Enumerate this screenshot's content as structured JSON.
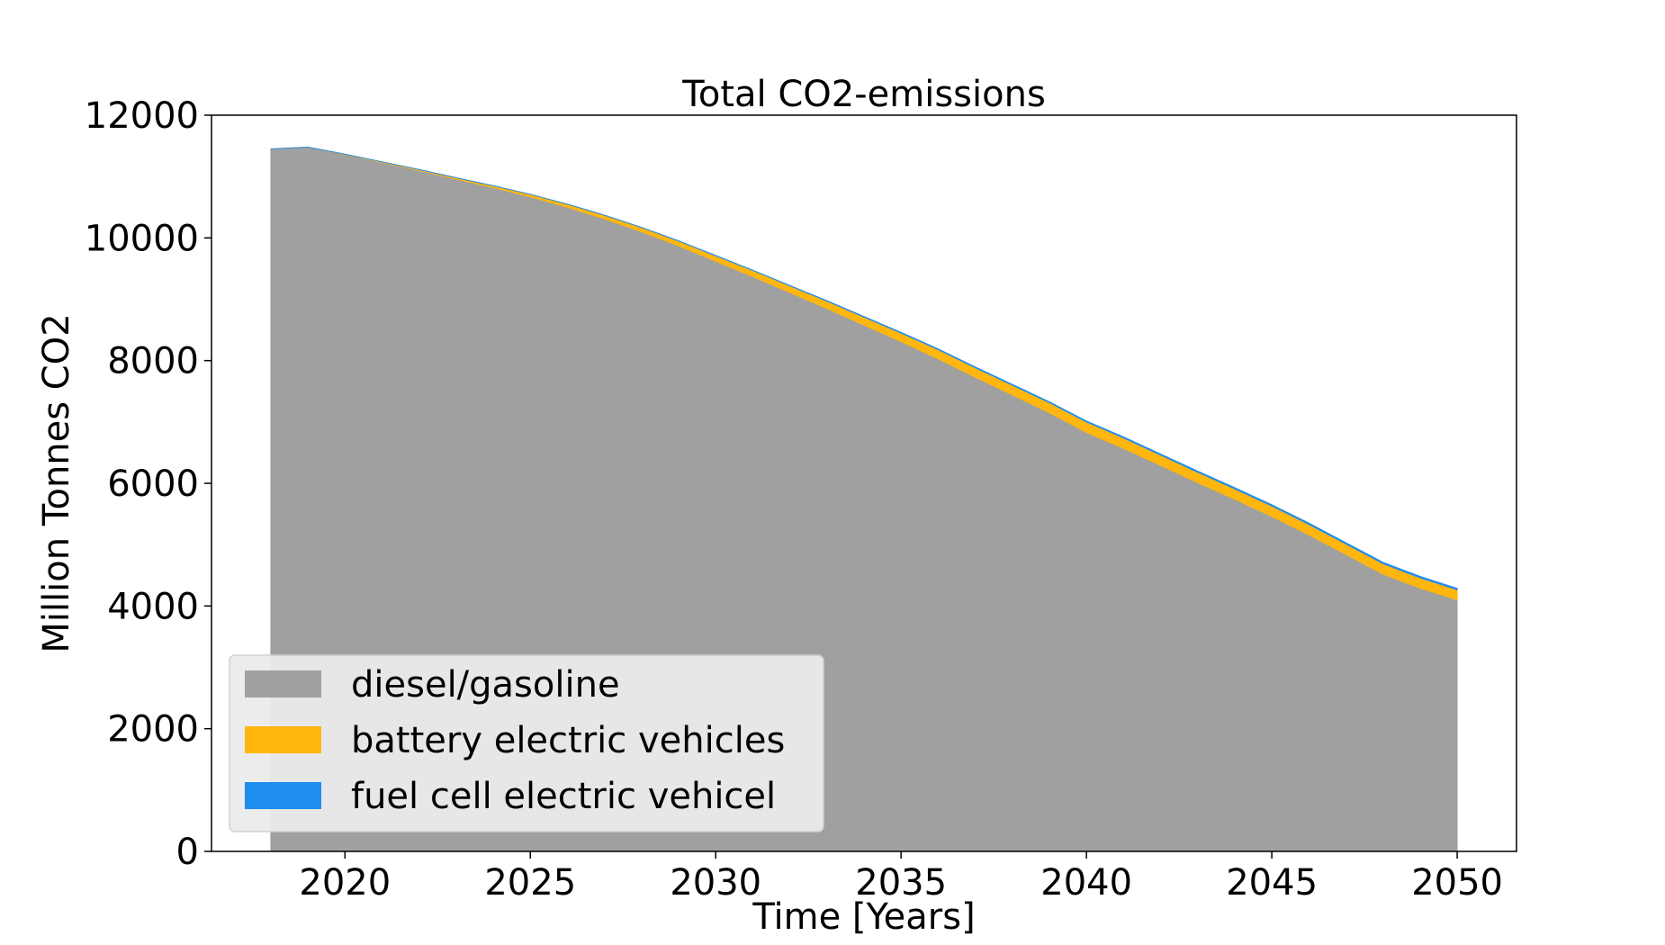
{
  "chart_data": {
    "type": "area",
    "stacked": true,
    "title": "Total CO2-emissions",
    "xlabel": "Time [Years]",
    "ylabel": "Million Tonnes CO2",
    "xlim": [
      2016.4,
      2051.6
    ],
    "ylim": [
      0,
      12000
    ],
    "xticks": [
      2020,
      2025,
      2030,
      2035,
      2040,
      2045,
      2050
    ],
    "yticks": [
      0,
      2000,
      4000,
      6000,
      8000,
      10000,
      12000
    ],
    "grid": false,
    "legend_position": "lower-left",
    "x": [
      2018,
      2019,
      2020,
      2021,
      2022,
      2023,
      2024,
      2025,
      2026,
      2027,
      2028,
      2029,
      2030,
      2031,
      2032,
      2033,
      2034,
      2035,
      2036,
      2037,
      2038,
      2039,
      2040,
      2041,
      2042,
      2043,
      2044,
      2045,
      2046,
      2047,
      2048,
      2049,
      2050
    ],
    "series": [
      {
        "name": "diesel/gasoline",
        "color": "#a0a0a0",
        "values": [
          11450,
          11480,
          11360,
          11230,
          11100,
          10960,
          10820,
          10670,
          10500,
          10310,
          10100,
          9870,
          9620,
          9370,
          9110,
          8850,
          8580,
          8310,
          8030,
          7730,
          7440,
          7150,
          6830,
          6570,
          6290,
          6010,
          5740,
          5460,
          5160,
          4840,
          4520,
          4290,
          4100
        ]
      },
      {
        "name": "battery electric vehicles",
        "color": "#ffb60f",
        "values": [
          0,
          0,
          5,
          10,
          15,
          20,
          30,
          40,
          50,
          60,
          70,
          80,
          90,
          100,
          110,
          120,
          130,
          140,
          150,
          155,
          160,
          165,
          170,
          170,
          170,
          170,
          170,
          170,
          170,
          170,
          170,
          170,
          165
        ]
      },
      {
        "name": "fuel cell electric vehicel",
        "color": "#1f8cf0",
        "values": [
          0,
          0,
          0,
          0,
          0,
          0,
          0,
          0,
          0,
          1,
          1,
          2,
          3,
          4,
          5,
          6,
          8,
          10,
          11,
          12,
          13,
          14,
          15,
          16,
          17,
          18,
          19,
          20,
          21,
          21,
          22,
          22,
          22
        ]
      }
    ]
  }
}
